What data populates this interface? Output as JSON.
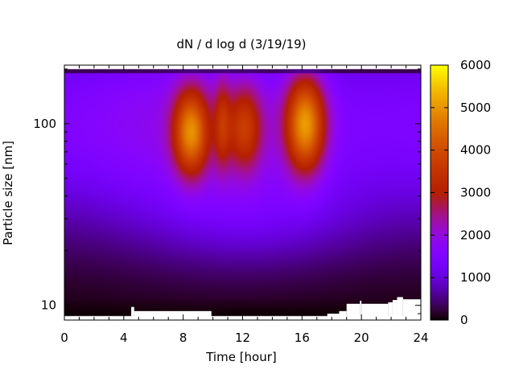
{
  "chart_data": {
    "type": "heatmap",
    "title": "dN / d log d (3/19/19)",
    "xlabel": "Time [hour]",
    "ylabel": "Particle size [nm]",
    "xlim": [
      0,
      24
    ],
    "ylim": [
      8.3,
      210
    ],
    "yscale": "log",
    "x_ticks": [
      0,
      4,
      8,
      12,
      16,
      20,
      24
    ],
    "x_tick_labels": [
      "0",
      "4",
      "8",
      "12",
      "16",
      "20",
      "24"
    ],
    "y_ticks": [
      10,
      100
    ],
    "y_tick_labels": [
      "10",
      "100"
    ],
    "colorbar": {
      "min": 0,
      "max": 6000,
      "ticks": [
        0,
        1000,
        2000,
        3000,
        4000,
        5000,
        6000
      ],
      "tick_labels": [
        "0",
        "1000",
        "2000",
        "3000",
        "4000",
        "5000",
        "6000"
      ],
      "colormap": "gnuplot-rgbformulae-7-5-15",
      "colors": [
        "#000000",
        "#7a00ff",
        "#c0209a",
        "#ff5000",
        "#ffff00"
      ]
    },
    "grid": false,
    "data_min_diameter_nm": 8.8,
    "data_max_diameter_nm": 200,
    "peaks": [
      {
        "time_hour": 8.5,
        "diameter_nm": 90,
        "value": 4800
      },
      {
        "time_hour": 10.6,
        "diameter_nm": 100,
        "value": 3000
      },
      {
        "time_hour": 12.1,
        "diameter_nm": 95,
        "value": 3600
      },
      {
        "time_hour": 16.2,
        "diameter_nm": 100,
        "value": 5200
      }
    ],
    "background_mode": {
      "diameter_nm": 100,
      "value": 1900
    },
    "no_data_regions": [
      {
        "time_start": 4.5,
        "time_end": 4.7,
        "diameter_max_nm": 9.8
      },
      {
        "time_start": 4.7,
        "time_end": 9.9,
        "diameter_max_nm": 9.3
      },
      {
        "time_start": 17.7,
        "time_end": 18.5,
        "diameter_max_nm": 9.0
      },
      {
        "time_start": 18.5,
        "time_end": 19.0,
        "diameter_max_nm": 9.3
      },
      {
        "time_start": 19.0,
        "time_end": 19.9,
        "diameter_max_nm": 10.2
      },
      {
        "time_start": 19.9,
        "time_end": 20.0,
        "diameter_max_nm": 10.6
      },
      {
        "time_start": 20.0,
        "time_end": 21.8,
        "diameter_max_nm": 10.2
      },
      {
        "time_start": 21.8,
        "time_end": 22.1,
        "diameter_max_nm": 10.4
      },
      {
        "time_start": 22.1,
        "time_end": 22.4,
        "diameter_max_nm": 10.7
      },
      {
        "time_start": 22.4,
        "time_end": 22.8,
        "diameter_max_nm": 11.1
      },
      {
        "time_start": 22.8,
        "time_end": 24.0,
        "diameter_max_nm": 10.8
      }
    ]
  }
}
